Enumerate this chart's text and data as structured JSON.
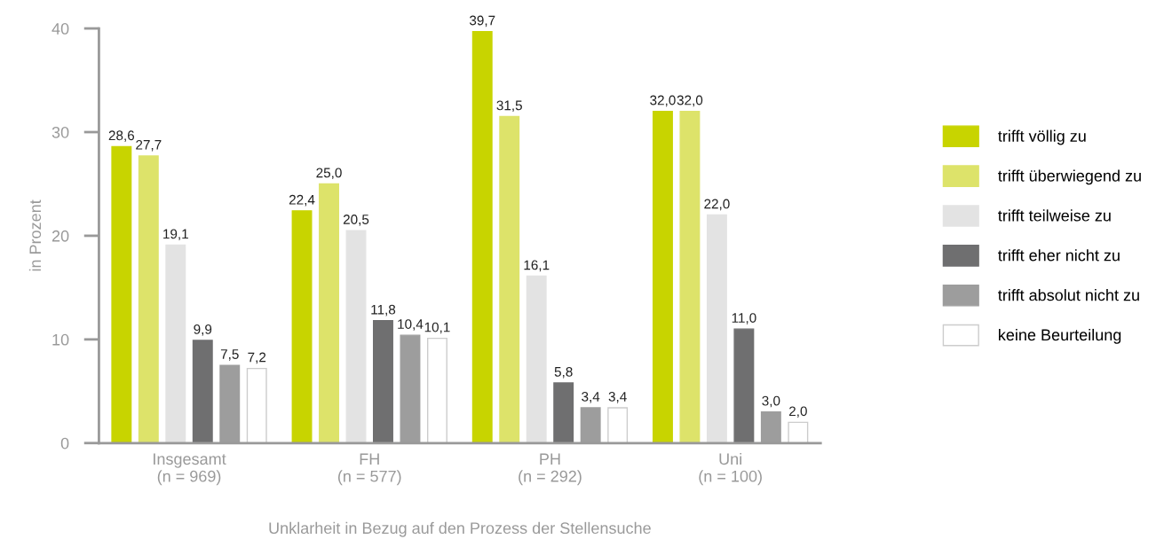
{
  "chart_data": {
    "type": "bar",
    "xlabel": "Unklarheit in Bezug auf den Prozess der Stellensuche",
    "ylabel": "in Prozent",
    "categories": [
      "Insgesamt\n(n = 969)",
      "FH\n(n = 577)",
      "PH\n(n = 292)",
      "Uni\n(n = 100)"
    ],
    "series": [
      {
        "name": "trifft völlig zu",
        "color": "#c8d400",
        "values": [
          28.6,
          22.4,
          39.7,
          32.0
        ]
      },
      {
        "name": "trifft überwiegend zu",
        "color": "#dde36a",
        "values": [
          27.7,
          25.0,
          31.5,
          32.0
        ]
      },
      {
        "name": "trifft teilweise zu",
        "color": "#e3e3e3",
        "values": [
          19.1,
          20.5,
          16.1,
          22.0
        ]
      },
      {
        "name": "trifft eher nicht zu",
        "color": "#6f6f70",
        "values": [
          9.9,
          11.8,
          5.8,
          11.0
        ]
      },
      {
        "name": "trifft absolut nicht zu",
        "color": "#9d9d9d",
        "values": [
          7.5,
          10.4,
          3.4,
          3.0
        ]
      },
      {
        "name": "keine Beurteilung",
        "color": "#ffffff",
        "values": [
          7.2,
          10.1,
          3.4,
          2.0
        ]
      }
    ],
    "value_labels": [
      [
        "28,6",
        "22,4",
        "39,7",
        "32,0"
      ],
      [
        "27,7",
        "25,0",
        "31,5",
        "32,0"
      ],
      [
        "19,1",
        "20,5",
        "16,1",
        "22,0"
      ],
      [
        "9,9",
        "11,8",
        "5,8",
        "11,0"
      ],
      [
        "7,5",
        "10,4",
        "3,4",
        "3,0"
      ],
      [
        "7,2",
        "10,1",
        "3,4",
        "2,0"
      ]
    ],
    "ylim": [
      0,
      40
    ],
    "yticks": [
      0,
      10,
      20,
      30,
      40
    ],
    "grid": false,
    "legend": "right"
  }
}
